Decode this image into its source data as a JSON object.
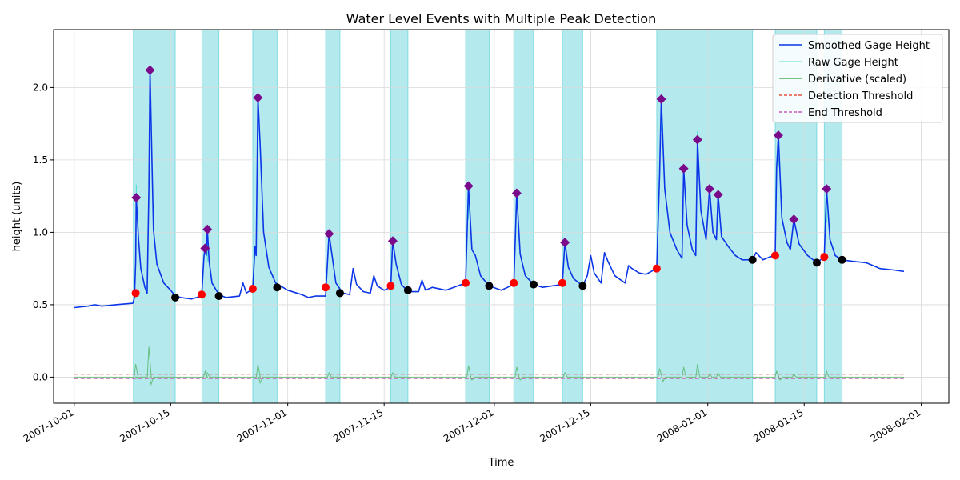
{
  "chart_data": {
    "type": "line",
    "title": "Water Level Events with Multiple Peak Detection",
    "xlabel": "Time",
    "ylabel": "height (units)",
    "x_range": [
      "2007-09-28",
      "2008-02-05"
    ],
    "ylim": [
      -0.18,
      2.4
    ],
    "grid": true,
    "legend_position": "top-right",
    "x_ticks": [
      "2007-10-01",
      "2007-10-15",
      "2007-11-01",
      "2007-11-15",
      "2007-12-01",
      "2007-12-15",
      "2008-01-01",
      "2008-01-15",
      "2008-02-01"
    ],
    "y_ticks": [
      0.0,
      0.5,
      1.0,
      1.5,
      2.0
    ],
    "y_tick_labels": [
      "0.0",
      "0.5",
      "1.0",
      "1.5",
      "2.0"
    ],
    "legend": [
      {
        "label": "Smoothed Gage Height",
        "color": "#0a35e8",
        "style": "solid"
      },
      {
        "label": "Raw Gage Height",
        "color": "#2fd7c9",
        "style": "solid-thin"
      },
      {
        "label": "Derivative (scaled)",
        "color": "#4caf5c",
        "style": "solid"
      },
      {
        "label": "Detection Threshold",
        "color": "#e8533f",
        "style": "dashed"
      },
      {
        "label": "End Threshold",
        "color": "#c75ab5",
        "style": "dashed"
      }
    ],
    "thresholds": {
      "detection": 0.02,
      "end": -0.01
    },
    "event_spans": [
      [
        "2007-10-09T14:00",
        "2007-10-15T16:00"
      ],
      [
        "2007-10-19T13:00",
        "2007-10-22T00:00"
      ],
      [
        "2007-10-26T22:00",
        "2007-10-30T11:00"
      ],
      [
        "2007-11-06T12:00",
        "2007-11-08T14:00"
      ],
      [
        "2007-11-15T23:00",
        "2007-11-18T11:00"
      ],
      [
        "2007-11-26T20:00",
        "2007-11-30T06:00"
      ],
      [
        "2007-12-03T20:00",
        "2007-12-06T17:00"
      ],
      [
        "2007-12-10T21:00",
        "2007-12-13T20:00"
      ],
      [
        "2007-12-24T14:00",
        "2008-01-07T12:00"
      ],
      [
        "2008-01-10T19:00",
        "2008-01-16T20:00"
      ],
      [
        "2008-01-17T22:00",
        "2008-01-20T12:00"
      ]
    ],
    "smoothed_series": [
      [
        "2007-10-01",
        0.48
      ],
      [
        "2007-10-03",
        0.49
      ],
      [
        "2007-10-04",
        0.5
      ],
      [
        "2007-10-05",
        0.49
      ],
      [
        "2007-10-07",
        0.5
      ],
      [
        "2007-10-09T12:00",
        0.51
      ],
      [
        "2007-10-09T18:00",
        0.55
      ],
      [
        "2007-10-09T22:00",
        0.8
      ],
      [
        "2007-10-10T00:00",
        1.24
      ],
      [
        "2007-10-10T08:00",
        0.95
      ],
      [
        "2007-10-10T16:00",
        0.75
      ],
      [
        "2007-10-11T06:00",
        0.62
      ],
      [
        "2007-10-11T14:00",
        0.58
      ],
      [
        "2007-10-11T20:00",
        1.3
      ],
      [
        "2007-10-12T00:00",
        2.12
      ],
      [
        "2007-10-12T06:00",
        1.55
      ],
      [
        "2007-10-12T12:00",
        1.02
      ],
      [
        "2007-10-13T00:00",
        0.78
      ],
      [
        "2007-10-14T00:00",
        0.65
      ],
      [
        "2007-10-15T00:00",
        0.6
      ],
      [
        "2007-10-15T16:00",
        0.56
      ],
      [
        "2007-10-16T12:00",
        0.55
      ],
      [
        "2007-10-18T00:00",
        0.54
      ],
      [
        "2007-10-19T12:00",
        0.56
      ],
      [
        "2007-10-19T20:00",
        0.83
      ],
      [
        "2007-10-20T00:00",
        0.89
      ],
      [
        "2007-10-20T04:00",
        0.84
      ],
      [
        "2007-10-20T08:00",
        1.02
      ],
      [
        "2007-10-20T14:00",
        0.8
      ],
      [
        "2007-10-21T00:00",
        0.65
      ],
      [
        "2007-10-22T00:00",
        0.57
      ],
      [
        "2007-10-23T00:00",
        0.55
      ],
      [
        "2007-10-25T00:00",
        0.56
      ],
      [
        "2007-10-25T12:00",
        0.65
      ],
      [
        "2007-10-26T00:00",
        0.58
      ],
      [
        "2007-10-26T22:00",
        0.61
      ],
      [
        "2007-10-27T06:00",
        0.9
      ],
      [
        "2007-10-27T10:00",
        0.84
      ],
      [
        "2007-10-27T16:00",
        1.93
      ],
      [
        "2007-10-28T00:00",
        1.6
      ],
      [
        "2007-10-28T12:00",
        1.0
      ],
      [
        "2007-10-29T06:00",
        0.76
      ],
      [
        "2007-10-30T06:00",
        0.65
      ],
      [
        "2007-11-01T00:00",
        0.6
      ],
      [
        "2007-11-03T00:00",
        0.57
      ],
      [
        "2007-11-04T00:00",
        0.55
      ],
      [
        "2007-11-05T00:00",
        0.56
      ],
      [
        "2007-11-06T12:00",
        0.56
      ],
      [
        "2007-11-07T00:00",
        0.99
      ],
      [
        "2007-11-07T12:00",
        0.82
      ],
      [
        "2007-11-08T00:00",
        0.65
      ],
      [
        "2007-11-09T00:00",
        0.58
      ],
      [
        "2007-11-10T00:00",
        0.57
      ],
      [
        "2007-11-10T12:00",
        0.75
      ],
      [
        "2007-11-11T00:00",
        0.64
      ],
      [
        "2007-11-12T00:00",
        0.59
      ],
      [
        "2007-11-13T00:00",
        0.58
      ],
      [
        "2007-11-13T12:00",
        0.7
      ],
      [
        "2007-11-14T00:00",
        0.63
      ],
      [
        "2007-11-15T00:00",
        0.6
      ],
      [
        "2007-11-15T23:00",
        0.62
      ],
      [
        "2007-11-16T06:00",
        0.94
      ],
      [
        "2007-11-16T18:00",
        0.78
      ],
      [
        "2007-11-17T12:00",
        0.64
      ],
      [
        "2007-11-18T12:00",
        0.59
      ],
      [
        "2007-11-20T00:00",
        0.59
      ],
      [
        "2007-11-20T12:00",
        0.67
      ],
      [
        "2007-11-21T00:00",
        0.6
      ],
      [
        "2007-11-22T00:00",
        0.62
      ],
      [
        "2007-11-24T00:00",
        0.6
      ],
      [
        "2007-11-26T20:00",
        0.65
      ],
      [
        "2007-11-27T06:00",
        1.32
      ],
      [
        "2007-11-27T18:00",
        0.88
      ],
      [
        "2007-11-28T06:00",
        0.84
      ],
      [
        "2007-11-29T00:00",
        0.7
      ],
      [
        "2007-11-30T06:00",
        0.63
      ],
      [
        "2007-12-02T00:00",
        0.6
      ],
      [
        "2007-12-03T20:00",
        0.64
      ],
      [
        "2007-12-04T06:00",
        1.27
      ],
      [
        "2007-12-04T18:00",
        0.85
      ],
      [
        "2007-12-05T12:00",
        0.7
      ],
      [
        "2007-12-06T17:00",
        0.64
      ],
      [
        "2007-12-08T00:00",
        0.62
      ],
      [
        "2007-12-10T21:00",
        0.64
      ],
      [
        "2007-12-11T06:00",
        0.93
      ],
      [
        "2007-12-11T18:00",
        0.76
      ],
      [
        "2007-12-12T12:00",
        0.68
      ],
      [
        "2007-12-13T20:00",
        0.63
      ],
      [
        "2007-12-14T12:00",
        0.7
      ],
      [
        "2007-12-15T00:00",
        0.84
      ],
      [
        "2007-12-15T12:00",
        0.72
      ],
      [
        "2007-12-16T12:00",
        0.65
      ],
      [
        "2007-12-17T00:00",
        0.86
      ],
      [
        "2007-12-17T12:00",
        0.8
      ],
      [
        "2007-12-18T12:00",
        0.7
      ],
      [
        "2007-12-20T00:00",
        0.65
      ],
      [
        "2007-12-20T12:00",
        0.77
      ],
      [
        "2007-12-21T00:00",
        0.75
      ],
      [
        "2007-12-22T00:00",
        0.72
      ],
      [
        "2007-12-23T00:00",
        0.71
      ],
      [
        "2007-12-24T14:00",
        0.75
      ],
      [
        "2007-12-25T00:00",
        1.4
      ],
      [
        "2007-12-25T06:00",
        1.92
      ],
      [
        "2007-12-25T18:00",
        1.3
      ],
      [
        "2007-12-26T12:00",
        1.0
      ],
      [
        "2007-12-27T12:00",
        0.88
      ],
      [
        "2007-12-28T06:00",
        0.82
      ],
      [
        "2007-12-28T12:00",
        1.44
      ],
      [
        "2007-12-29T00:00",
        1.05
      ],
      [
        "2007-12-29T18:00",
        0.88
      ],
      [
        "2007-12-30T06:00",
        0.84
      ],
      [
        "2007-12-30T12:00",
        1.64
      ],
      [
        "2007-12-31T00:00",
        1.15
      ],
      [
        "2007-12-31T18:00",
        0.95
      ],
      [
        "2008-01-01T06:00",
        1.3
      ],
      [
        "2008-01-01T18:00",
        1.0
      ],
      [
        "2008-01-02T06:00",
        0.95
      ],
      [
        "2008-01-02T12:00",
        1.26
      ],
      [
        "2008-01-03T00:00",
        0.97
      ],
      [
        "2008-01-04T00:00",
        0.9
      ],
      [
        "2008-01-05T00:00",
        0.84
      ],
      [
        "2008-01-06T00:00",
        0.81
      ],
      [
        "2008-01-07T12:00",
        0.81
      ],
      [
        "2008-01-08T00:00",
        0.86
      ],
      [
        "2008-01-09T00:00",
        0.81
      ],
      [
        "2008-01-10T00:00",
        0.83
      ],
      [
        "2008-01-10T19:00",
        0.84
      ],
      [
        "2008-01-11T00:00",
        1.45
      ],
      [
        "2008-01-11T06:00",
        1.67
      ],
      [
        "2008-01-11T18:00",
        1.1
      ],
      [
        "2008-01-12T12:00",
        0.93
      ],
      [
        "2008-01-13T00:00",
        0.88
      ],
      [
        "2008-01-13T12:00",
        1.09
      ],
      [
        "2008-01-14T06:00",
        0.92
      ],
      [
        "2008-01-15T12:00",
        0.84
      ],
      [
        "2008-01-16T20:00",
        0.79
      ],
      [
        "2008-01-17T22:00",
        0.83
      ],
      [
        "2008-01-18T06:00",
        1.3
      ],
      [
        "2008-01-18T18:00",
        0.95
      ],
      [
        "2008-01-19T12:00",
        0.84
      ],
      [
        "2008-01-20T12:00",
        0.81
      ],
      [
        "2008-01-22T00:00",
        0.8
      ],
      [
        "2008-01-24T00:00",
        0.79
      ],
      [
        "2008-01-25T00:00",
        0.77
      ],
      [
        "2008-01-26T00:00",
        0.75
      ],
      [
        "2008-01-28T00:00",
        0.74
      ],
      [
        "2008-01-29T12:00",
        0.73
      ]
    ],
    "raw_spikes": [
      [
        "2007-10-10T00:00",
        1.33
      ],
      [
        "2007-10-12T00:00",
        2.3
      ],
      [
        "2007-10-20T08:00",
        1.05
      ],
      [
        "2007-10-27T16:00",
        1.96
      ],
      [
        "2007-11-27T06:00",
        1.34
      ],
      [
        "2007-12-25T06:00",
        1.95
      ],
      [
        "2007-12-30T12:00",
        1.7
      ],
      [
        "2008-01-11T06:00",
        1.7
      ],
      [
        "2008-01-18T06:00",
        1.32
      ]
    ],
    "derivative_spikes": [
      [
        "2007-10-09T22:00",
        0.09
      ],
      [
        "2007-10-10T04:00",
        -0.01
      ],
      [
        "2007-10-11T20:00",
        0.21
      ],
      [
        "2007-10-12T04:00",
        -0.05
      ],
      [
        "2007-10-20T00:00",
        0.04
      ],
      [
        "2007-10-20T08:00",
        0.03
      ],
      [
        "2007-10-27T16:00",
        0.09
      ],
      [
        "2007-10-28T00:00",
        -0.04
      ],
      [
        "2007-11-07T00:00",
        0.03
      ],
      [
        "2007-11-16T06:00",
        0.03
      ],
      [
        "2007-11-27T06:00",
        0.08
      ],
      [
        "2007-11-27T18:00",
        -0.02
      ],
      [
        "2007-12-04T06:00",
        0.07
      ],
      [
        "2007-12-04T18:00",
        -0.02
      ],
      [
        "2007-12-11T06:00",
        0.03
      ],
      [
        "2007-12-25T00:00",
        0.06
      ],
      [
        "2007-12-25T12:00",
        -0.03
      ],
      [
        "2007-12-28T12:00",
        0.07
      ],
      [
        "2007-12-30T12:00",
        0.09
      ],
      [
        "2008-01-01T06:00",
        0.02
      ],
      [
        "2008-01-02T12:00",
        0.03
      ],
      [
        "2008-01-11T00:00",
        0.04
      ],
      [
        "2008-01-11T12:00",
        -0.02
      ],
      [
        "2008-01-13T12:00",
        0.02
      ],
      [
        "2008-01-18T06:00",
        0.04
      ]
    ],
    "start_points": [
      [
        "2007-10-09T22:00",
        0.58
      ],
      [
        "2007-10-19T12:00",
        0.57
      ],
      [
        "2007-10-26T22:00",
        0.61
      ],
      [
        "2007-11-06T12:00",
        0.62
      ],
      [
        "2007-11-15T23:00",
        0.63
      ],
      [
        "2007-11-26T20:00",
        0.65
      ],
      [
        "2007-12-03T20:00",
        0.65
      ],
      [
        "2007-12-10T21:00",
        0.65
      ],
      [
        "2007-12-24T14:00",
        0.75
      ],
      [
        "2008-01-10T19:00",
        0.84
      ],
      [
        "2008-01-17T22:00",
        0.83
      ]
    ],
    "end_points": [
      [
        "2007-10-15T16:00",
        0.55
      ],
      [
        "2007-10-22T00:00",
        0.56
      ],
      [
        "2007-10-30T11:00",
        0.62
      ],
      [
        "2007-11-08T14:00",
        0.58
      ],
      [
        "2007-11-18T11:00",
        0.6
      ],
      [
        "2007-11-30T06:00",
        0.63
      ],
      [
        "2007-12-06T17:00",
        0.64
      ],
      [
        "2007-12-13T20:00",
        0.63
      ],
      [
        "2008-01-07T12:00",
        0.81
      ],
      [
        "2008-01-16T20:00",
        0.79
      ],
      [
        "2008-01-20T12:00",
        0.81
      ]
    ],
    "peak_points": [
      [
        "2007-10-10T00:00",
        1.24
      ],
      [
        "2007-10-12T00:00",
        2.12
      ],
      [
        "2007-10-20T00:00",
        0.89
      ],
      [
        "2007-10-20T08:00",
        1.02
      ],
      [
        "2007-10-27T16:00",
        1.93
      ],
      [
        "2007-11-07T00:00",
        0.99
      ],
      [
        "2007-11-16T06:00",
        0.94
      ],
      [
        "2007-11-27T06:00",
        1.32
      ],
      [
        "2007-12-04T06:00",
        1.27
      ],
      [
        "2007-12-11T06:00",
        0.93
      ],
      [
        "2007-12-25T06:00",
        1.92
      ],
      [
        "2007-12-28T12:00",
        1.44
      ],
      [
        "2007-12-30T12:00",
        1.64
      ],
      [
        "2008-01-01T06:00",
        1.3
      ],
      [
        "2008-01-02T12:00",
        1.26
      ],
      [
        "2008-01-11T06:00",
        1.67
      ],
      [
        "2008-01-13T12:00",
        1.09
      ],
      [
        "2008-01-18T06:00",
        1.3
      ]
    ]
  }
}
